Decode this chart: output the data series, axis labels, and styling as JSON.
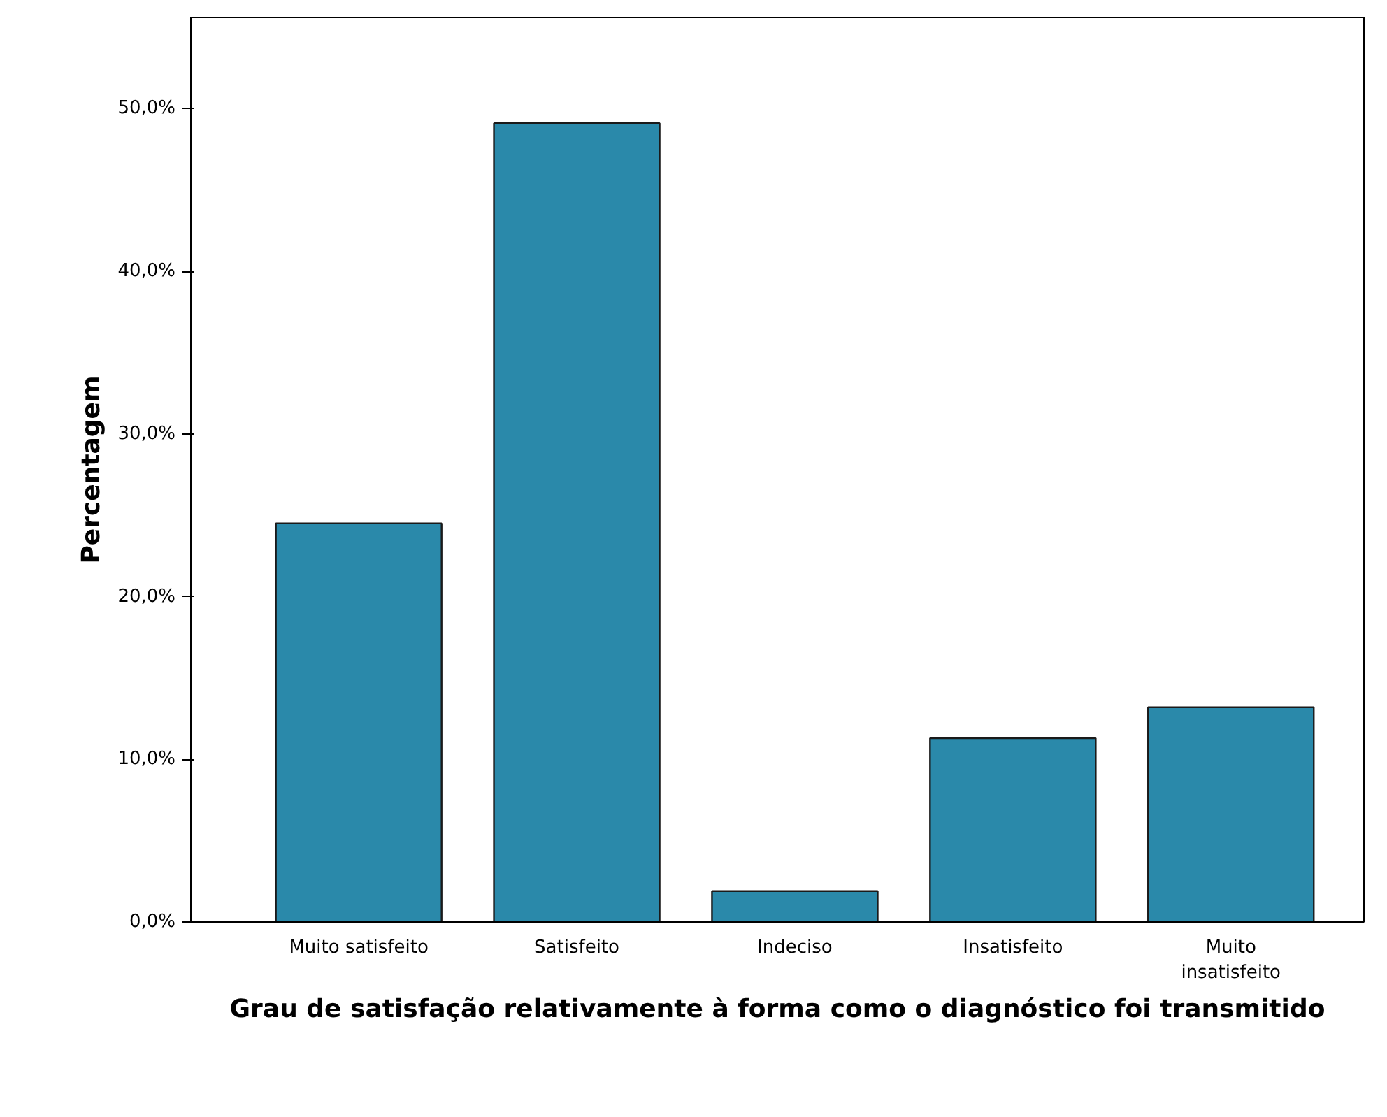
{
  "chart_data": {
    "type": "bar",
    "xlabel": "Grau de satisfação relativamente à forma como o diagnóstico foi transmitido",
    "ylabel": "Percentagem",
    "categories": [
      "Muito satisfeito",
      "Satisfeito",
      "Indeciso",
      "Insatisfeito",
      "Muito insatisfeito"
    ],
    "values": [
      24.5,
      49.1,
      1.9,
      11.3,
      13.2
    ],
    "color": "#2a89aa",
    "ylim": [
      0,
      55.6
    ],
    "yticks": [
      {
        "value": 0,
        "label": "0,0%"
      },
      {
        "value": 10,
        "label": "10,0%"
      },
      {
        "value": 20,
        "label": "20,0%"
      },
      {
        "value": 30,
        "label": "30,0%"
      },
      {
        "value": 40,
        "label": "40,0%"
      },
      {
        "value": 50,
        "label": "50,0%"
      }
    ],
    "grid": false
  }
}
